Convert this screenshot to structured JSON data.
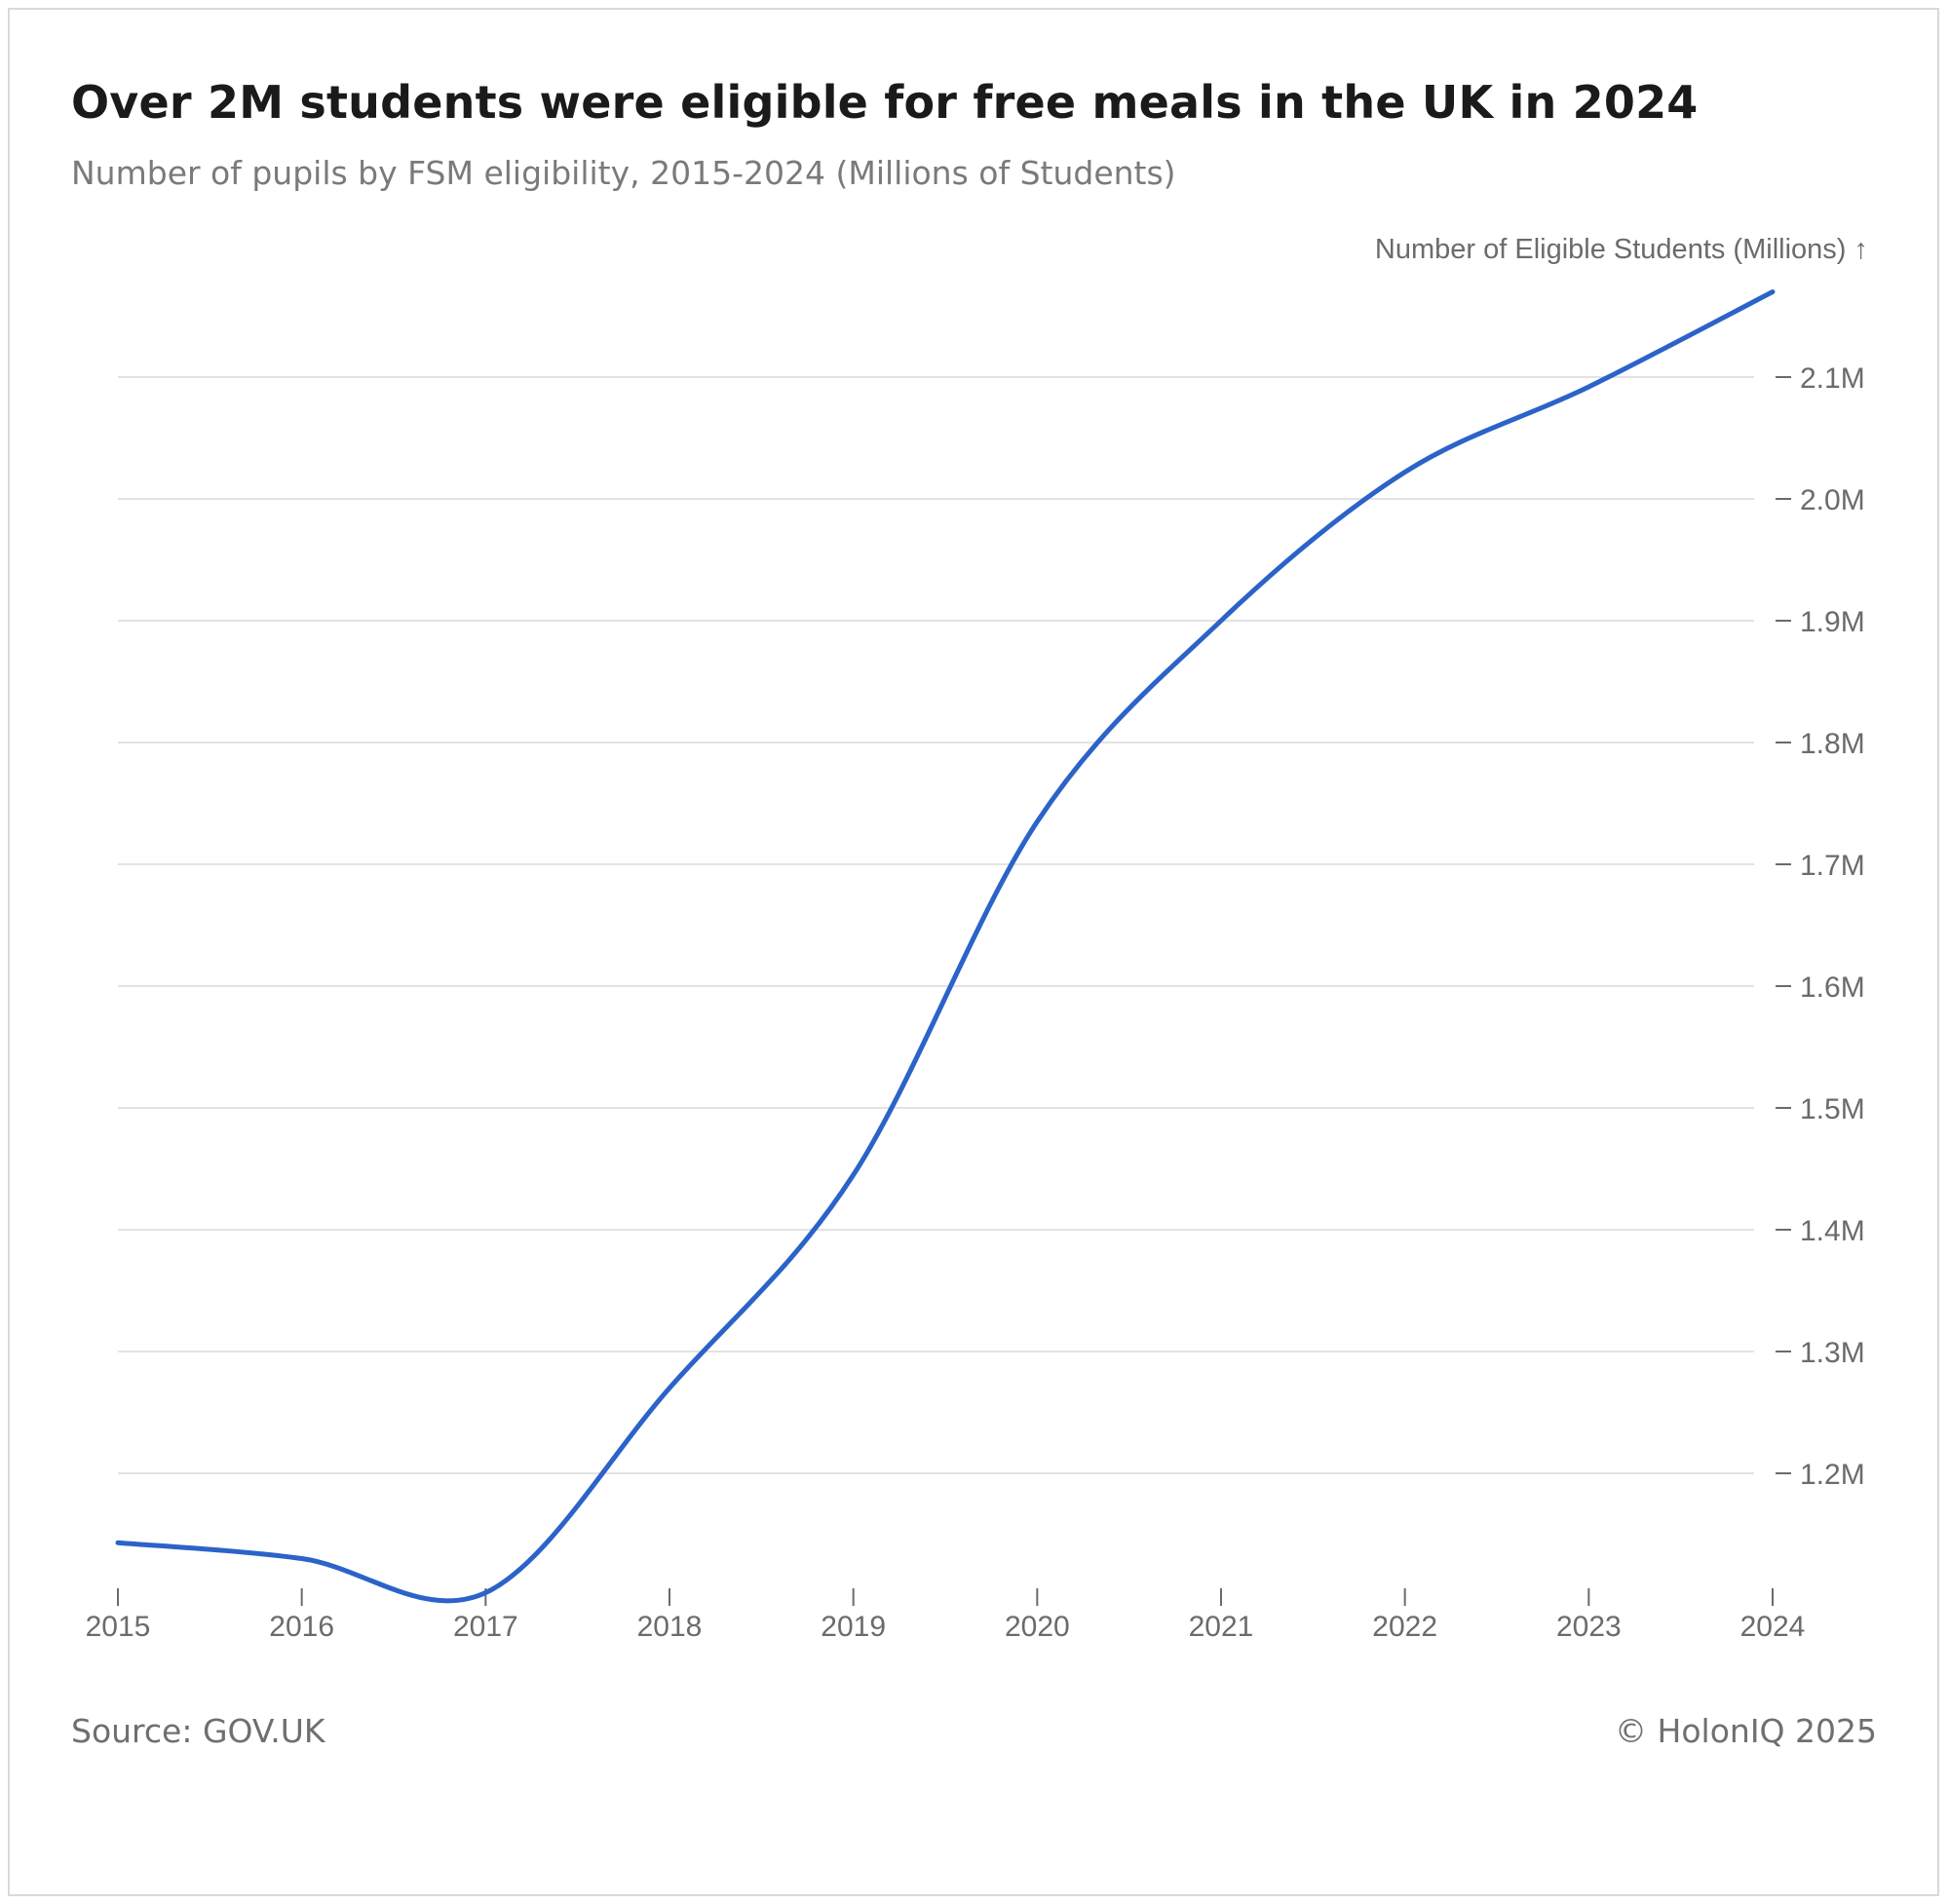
{
  "header": {
    "title": "Over 2M students were eligible for free meals in the UK in 2024",
    "subtitle": "Number of pupils by FSM eligibility, 2015-2024 (Millions of Students)"
  },
  "footer": {
    "source": "Source: GOV.UK",
    "copyright": "© HolonIQ 2025"
  },
  "chart_data": {
    "type": "line",
    "ylabel": "Number of Eligible Students (Millions) ↑",
    "x": [
      2015,
      2016,
      2017,
      2018,
      2019,
      2020,
      2021,
      2022,
      2023,
      2024
    ],
    "x_tick_labels": [
      "2015",
      "2016",
      "2017",
      "2018",
      "2019",
      "2020",
      "2021",
      "2022",
      "2023",
      "2024"
    ],
    "y_ticks": [
      1.2,
      1.3,
      1.4,
      1.5,
      1.6,
      1.7,
      1.8,
      1.9,
      2.0,
      2.1
    ],
    "y_tick_labels": [
      "1.2M",
      "1.3M",
      "1.4M",
      "1.5M",
      "1.6M",
      "1.7M",
      "1.8M",
      "1.9M",
      "2.0M",
      "2.1M"
    ],
    "ylim": [
      1.1,
      2.17
    ],
    "xlim": [
      2015,
      2024
    ],
    "y_axis_position": "right",
    "grid": true,
    "series": [
      {
        "values": [
          1.143,
          1.13,
          1.102,
          1.27,
          1.445,
          1.735,
          1.9,
          2.022,
          2.092,
          2.17
        ],
        "color": "#2b63c8"
      }
    ]
  }
}
